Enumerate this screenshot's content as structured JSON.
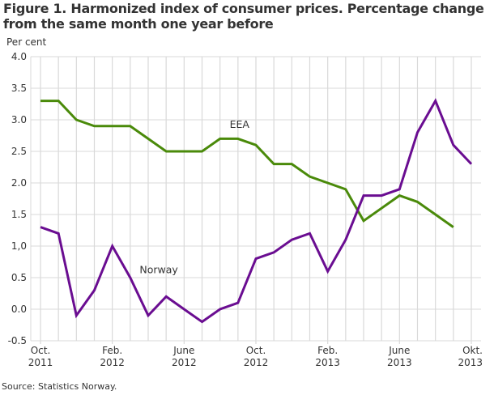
{
  "chart_data": {
    "type": "line",
    "title": "Figure 1. Harmonized index of consumer prices. Percentage change from the same month one year before",
    "ylabel": "Per cent",
    "xlabel": "",
    "source": "Source: Statistics Norway.",
    "ylim": [
      -0.5,
      4.0
    ],
    "yticks": [
      "-0.5",
      "0.0",
      "0.5",
      "1,0",
      "1.5",
      "2.0",
      "2.5",
      "3.0",
      "3.5",
      "4.0"
    ],
    "ytick_values": [
      -0.5,
      0.0,
      0.5,
      1.0,
      1.5,
      2.0,
      2.5,
      3.0,
      3.5,
      4.0
    ],
    "x": [
      "2011-10",
      "2011-11",
      "2011-12",
      "2012-01",
      "2012-02",
      "2012-03",
      "2012-04",
      "2012-05",
      "2012-06",
      "2012-07",
      "2012-08",
      "2012-09",
      "2012-10",
      "2012-11",
      "2012-12",
      "2013-01",
      "2013-02",
      "2013-03",
      "2013-04",
      "2013-05",
      "2013-06",
      "2013-07",
      "2013-08",
      "2013-09",
      "2013-10"
    ],
    "xticks": [
      {
        "index": 0,
        "line1": "Oct.",
        "line2": "2011"
      },
      {
        "index": 4,
        "line1": "Feb.",
        "line2": "2012"
      },
      {
        "index": 8,
        "line1": "June",
        "line2": "2012"
      },
      {
        "index": 12,
        "line1": "Oct.",
        "line2": "2012"
      },
      {
        "index": 16,
        "line1": "Feb.",
        "line2": "2013"
      },
      {
        "index": 20,
        "line1": "June",
        "line2": "2013"
      },
      {
        "index": 24,
        "line1": "Okt.",
        "line2": "2013"
      }
    ],
    "grid": true,
    "legend": "inline-labels",
    "series": [
      {
        "name": "EEA",
        "color": "#4a8a0a",
        "label_at": {
          "index": 11,
          "value": 2.92
        },
        "values": [
          3.3,
          3.3,
          3.0,
          2.9,
          2.9,
          2.9,
          2.7,
          2.5,
          2.5,
          2.5,
          2.7,
          2.7,
          2.6,
          2.3,
          2.3,
          2.1,
          2.0,
          1.9,
          1.4,
          1.6,
          1.8,
          1.7,
          1.5,
          1.3,
          null
        ]
      },
      {
        "name": "Norway",
        "color": "#6a0d91",
        "label_at": {
          "index": 6.5,
          "value": 0.62
        },
        "values": [
          1.3,
          1.2,
          -0.1,
          0.3,
          1.0,
          0.5,
          -0.1,
          0.2,
          0.0,
          -0.2,
          0.0,
          0.1,
          0.8,
          0.9,
          1.1,
          1.2,
          0.6,
          1.1,
          1.8,
          1.8,
          1.9,
          2.8,
          3.3,
          2.6,
          2.3
        ]
      }
    ]
  }
}
